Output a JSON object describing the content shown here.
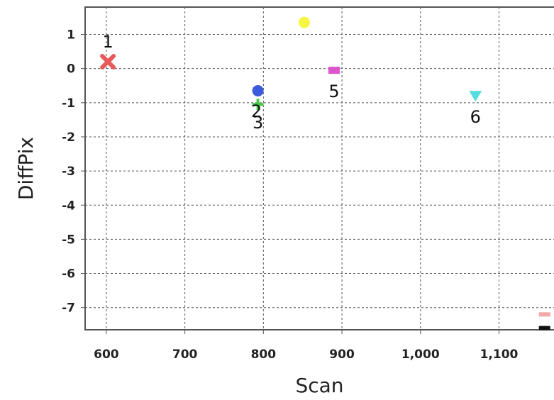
{
  "chart_data": {
    "type": "scatter",
    "title": "",
    "xlabel": "Scan",
    "ylabel": "DiffPix",
    "xlim": [
      573,
      1170
    ],
    "ylim": [
      -7.65,
      1.8
    ],
    "xticks": [
      600,
      700,
      800,
      900,
      1000,
      1100
    ],
    "xtick_labels": [
      "600",
      "700",
      "800",
      "900",
      "1,000",
      "1,100"
    ],
    "yticks": [
      1,
      0,
      -1,
      -2,
      -3,
      -4,
      -5,
      -6,
      -7
    ],
    "ytick_labels": [
      "1",
      "0",
      "-1",
      "-2",
      "-3",
      "-4",
      "-5",
      "-6",
      "-7"
    ],
    "grid": true,
    "legend": "none",
    "points": [
      {
        "x": 602,
        "y": 0.2,
        "marker": "x",
        "color": "#e85a5a",
        "label": "1"
      },
      {
        "x": 793,
        "y": -0.65,
        "marker": "circle",
        "color": "#3b5bdb",
        "label": ""
      },
      {
        "x": 793,
        "y": -1.05,
        "marker": "cross",
        "color": "#44cc44",
        "label": "2"
      },
      {
        "x": 793,
        "y": -1.05,
        "marker": "none",
        "color": "#44cc44",
        "label": "3"
      },
      {
        "x": 852,
        "y": 1.35,
        "marker": "circle",
        "color": "#f5f542",
        "label": ""
      },
      {
        "x": 890,
        "y": -0.05,
        "marker": "square",
        "color": "#dd55cc",
        "label": "5"
      },
      {
        "x": 1070,
        "y": -0.8,
        "marker": "triangle-down",
        "color": "#55dddd",
        "label": "6"
      },
      {
        "x": 1158,
        "y": -7.2,
        "marker": "dash",
        "color": "#f0a8a8",
        "label": ""
      },
      {
        "x": 1158,
        "y": -7.6,
        "marker": "dash",
        "color": "#111111",
        "label": ""
      }
    ]
  }
}
